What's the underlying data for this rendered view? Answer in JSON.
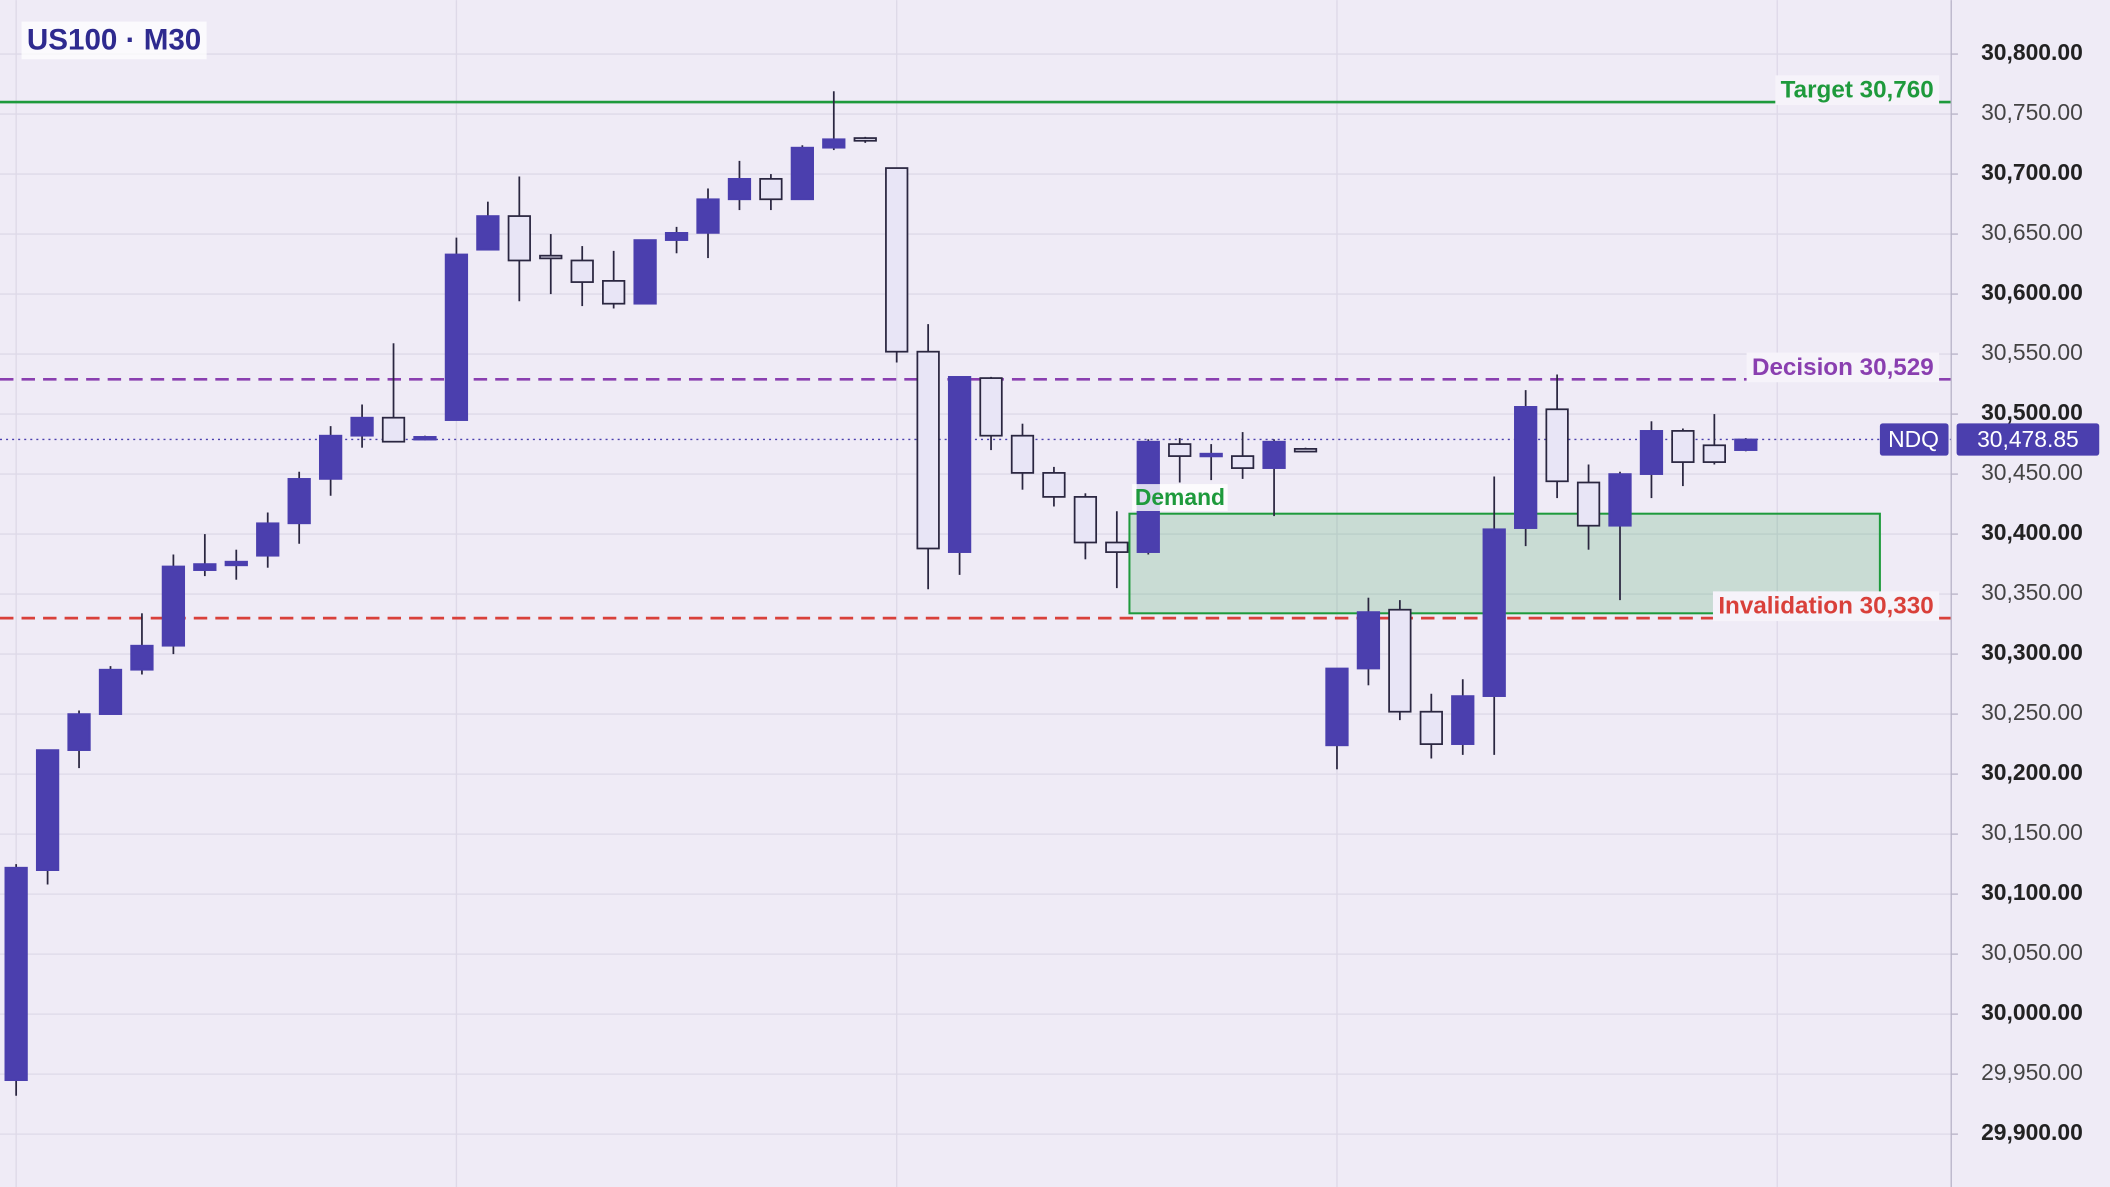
{
  "chart_data": {
    "type": "candlestick",
    "title": "US100 · M30",
    "categories": [
      null,
      null,
      null,
      null,
      null,
      null,
      null,
      null,
      null,
      null,
      null,
      null,
      null,
      null,
      null,
      null,
      null,
      null,
      null,
      null,
      null,
      null,
      null,
      null,
      null,
      null,
      null,
      null,
      null,
      null,
      null,
      null,
      null,
      null,
      null,
      null,
      null,
      null,
      null,
      null,
      null,
      null,
      null,
      null,
      null,
      null,
      null,
      null,
      null,
      null,
      null,
      null,
      null,
      null,
      null,
      null
    ],
    "open": [
      29945,
      30120,
      30220,
      30250,
      30287,
      30307,
      30370,
      30374,
      30382,
      30409,
      30446,
      30482,
      30497,
      30479,
      30495,
      30637,
      30665,
      30632,
      30628,
      30611,
      30592,
      30645,
      30651,
      30679,
      30696,
      30679,
      30722,
      30730,
      30705,
      30552,
      30385,
      30530,
      30482,
      30451,
      30431,
      30393,
      30385,
      30475,
      30467,
      30465,
      30455,
      30471,
      30224,
      30288,
      30337,
      30252,
      30225,
      30265,
      30405,
      30504,
      30443,
      30407,
      30450,
      30486,
      30474,
      30470
    ],
    "high": [
      30125,
      30220,
      30253,
      30290,
      30334,
      30383,
      30400,
      30387,
      30418,
      30452,
      30490,
      30508,
      30559,
      30482,
      30647,
      30677,
      30698,
      30650,
      30640,
      30636,
      30645,
      30656,
      30688,
      30711,
      30700,
      30724,
      30769,
      30731,
      30705,
      30575,
      30531,
      30531,
      30492,
      30456,
      30434,
      30419,
      30479,
      30480,
      30475,
      30485,
      30479,
      30472,
      30288,
      30347,
      30345,
      30267,
      30279,
      30448,
      30520,
      30533,
      30458,
      30452,
      30494,
      30488,
      30500,
      30480
    ],
    "low": [
      29932,
      30108,
      30205,
      30250,
      30283,
      30300,
      30365,
      30362,
      30372,
      30392,
      30432,
      30472,
      30477,
      30478,
      30495,
      30637,
      30594,
      30600,
      30590,
      30588,
      30592,
      30634,
      30630,
      30670,
      30670,
      30679,
      30720,
      30726,
      30543,
      30354,
      30366,
      30470,
      30437,
      30423,
      30379,
      30355,
      30383,
      30443,
      30445,
      30446,
      30415,
      30469,
      30204,
      30274,
      30245,
      30213,
      30216,
      30216,
      30390,
      30430,
      30387,
      30345,
      30430,
      30440,
      30458,
      30469
    ],
    "close": [
      30122,
      30220,
      30250,
      30287,
      30307,
      30373,
      30375,
      30377,
      30409,
      30446,
      30482,
      30497,
      30477,
      30481,
      30633,
      30665,
      30628,
      30631,
      30610,
      30592,
      30645,
      30651,
      30679,
      30696,
      30679,
      30722,
      30729,
      30729,
      30552,
      30388,
      30531,
      30482,
      30451,
      30431,
      30393,
      30385,
      30477,
      30465,
      30467,
      30455,
      30477,
      30470,
      30288,
      30335,
      30252,
      30225,
      30265,
      30404,
      30506,
      30444,
      30407,
      30450,
      30486,
      30460,
      30460,
      30478.85
    ],
    "up_color": "#4b3fae",
    "down_color": "#e8e5f6",
    "ylim": [
      29856,
      30845
    ],
    "yticks": [
      {
        "value": 29900,
        "label": "29,900.00"
      },
      {
        "value": 29950,
        "label": "29,950.00"
      },
      {
        "value": 30000,
        "label": "30,000.00"
      },
      {
        "value": 30050,
        "label": "30,050.00"
      },
      {
        "value": 30100,
        "label": "30,100.00"
      },
      {
        "value": 30150,
        "label": "30,150.00"
      },
      {
        "value": 30200,
        "label": "30,200.00"
      },
      {
        "value": 30250,
        "label": "30,250.00"
      },
      {
        "value": 30300,
        "label": "30,300.00"
      },
      {
        "value": 30350,
        "label": "30,350.00"
      },
      {
        "value": 30400,
        "label": "30,400.00"
      },
      {
        "value": 30450,
        "label": "30,450.00"
      },
      {
        "value": 30500,
        "label": "30,500.00"
      },
      {
        "value": 30550,
        "label": "30,550.00"
      },
      {
        "value": 30600,
        "label": "30,600.00"
      },
      {
        "value": 30650,
        "label": "30,650.00"
      },
      {
        "value": 30700,
        "label": "30,700.00"
      },
      {
        "value": 30750,
        "label": "30,750.00"
      },
      {
        "value": 30800,
        "label": "30,800.00"
      }
    ],
    "grid": true,
    "levels": [
      {
        "label": "Target 30,760",
        "value": 30760,
        "color": "#1e9a3c",
        "dashed": false
      },
      {
        "label": "Decision 30,529",
        "value": 30529,
        "color": "#8a3fb0",
        "dashed": true
      },
      {
        "label": "Invalidation 30,330",
        "value": 30330,
        "color": "#d9403a",
        "dashed": true
      }
    ],
    "zone": {
      "label": "Demand",
      "low": 30334,
      "high": 30417,
      "color": "#1e9a3c"
    },
    "last_price": {
      "symbol": "NDQ",
      "value": 30478.85,
      "label": "30,478.85",
      "color": "#4b3fae"
    }
  }
}
